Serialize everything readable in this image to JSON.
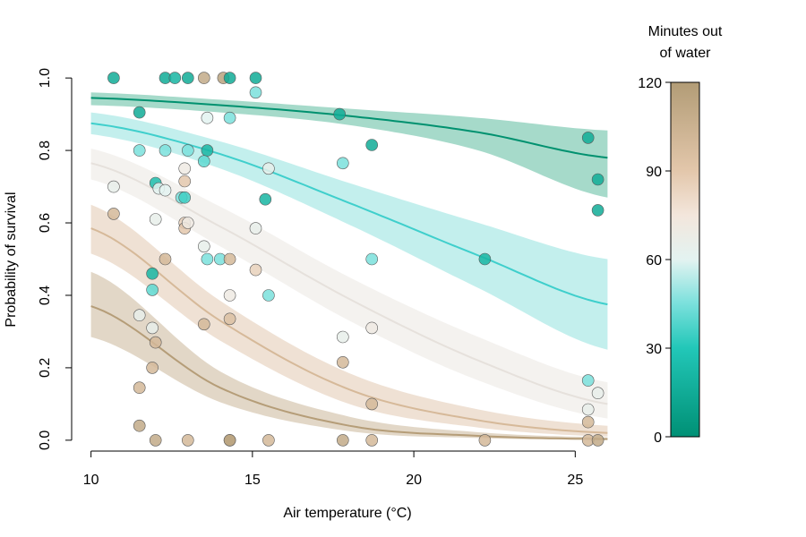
{
  "chart_data": {
    "type": "scatter",
    "xlabel": "Air temperature (°C)",
    "ylabel": "Probability of survival",
    "xlim": [
      9.4,
      26.6
    ],
    "ylim": [
      -0.03,
      1.03
    ],
    "x_ticks": [
      10,
      15,
      20,
      25
    ],
    "y_ticks": [
      0.0,
      0.2,
      0.4,
      0.6,
      0.8,
      1.0
    ],
    "x_tick_labels": [
      "10",
      "15",
      "20",
      "25"
    ],
    "y_tick_labels": [
      "0.0",
      "0.2",
      "0.4",
      "0.6",
      "0.8",
      "1.0"
    ],
    "grid": false,
    "colorbar": {
      "title_lines": [
        "Minutes out",
        "of water"
      ],
      "range": [
        0,
        120
      ],
      "ticks": [
        0,
        30,
        60,
        90,
        120
      ],
      "tick_labels": [
        "0",
        "30",
        "60",
        "90",
        "120"
      ],
      "color_stops": [
        {
          "v": 0,
          "color": "#009075"
        },
        {
          "v": 30,
          "color": "#22c7b8"
        },
        {
          "v": 45,
          "color": "#7ae0dc"
        },
        {
          "v": 60,
          "color": "#e3f3f1"
        },
        {
          "v": 75,
          "color": "#f3e6dc"
        },
        {
          "v": 90,
          "color": "#e3c7ab"
        },
        {
          "v": 120,
          "color": "#b29c76"
        }
      ]
    },
    "series": [
      {
        "minutes": 15,
        "line_color": "#00916f",
        "band_color": "#97d4c1",
        "curve": [
          [
            10,
            0.945
          ],
          [
            14,
            0.925
          ],
          [
            18,
            0.895
          ],
          [
            22,
            0.85
          ],
          [
            26,
            0.78
          ]
        ],
        "band_upper": [
          [
            10,
            0.96
          ],
          [
            14,
            0.94
          ],
          [
            18,
            0.915
          ],
          [
            22,
            0.89
          ],
          [
            26,
            0.855
          ]
        ],
        "band_lower": [
          [
            10,
            0.925
          ],
          [
            14,
            0.905
          ],
          [
            18,
            0.87
          ],
          [
            22,
            0.8
          ],
          [
            26,
            0.67
          ]
        ]
      },
      {
        "minutes": 45,
        "line_color": "#3fcfcc",
        "band_color": "#b8ecea",
        "curve": [
          [
            10,
            0.875
          ],
          [
            14,
            0.79
          ],
          [
            18,
            0.655
          ],
          [
            22,
            0.51
          ],
          [
            26,
            0.375
          ]
        ],
        "band_upper": [
          [
            10,
            0.905
          ],
          [
            14,
            0.825
          ],
          [
            18,
            0.71
          ],
          [
            22,
            0.6
          ],
          [
            26,
            0.5
          ]
        ],
        "band_lower": [
          [
            10,
            0.845
          ],
          [
            14,
            0.75
          ],
          [
            18,
            0.595
          ],
          [
            22,
            0.42
          ],
          [
            26,
            0.25
          ]
        ]
      },
      {
        "minutes": 60,
        "line_color": "#e6e1dc",
        "band_color": "#f2f0ec",
        "curve": [
          [
            10,
            0.765
          ],
          [
            14,
            0.59
          ],
          [
            18,
            0.39
          ],
          [
            22,
            0.22
          ],
          [
            26,
            0.1
          ]
        ],
        "band_upper": [
          [
            10,
            0.805
          ],
          [
            14,
            0.645
          ],
          [
            18,
            0.45
          ],
          [
            22,
            0.285
          ],
          [
            26,
            0.16
          ]
        ],
        "band_lower": [
          [
            10,
            0.72
          ],
          [
            14,
            0.535
          ],
          [
            18,
            0.33
          ],
          [
            22,
            0.165
          ],
          [
            26,
            0.06
          ]
        ]
      },
      {
        "minutes": 85,
        "line_color": "#d6b999",
        "band_color": "#ecdccd",
        "curve": [
          [
            10,
            0.585
          ],
          [
            14,
            0.33
          ],
          [
            18,
            0.14
          ],
          [
            22,
            0.055
          ],
          [
            26,
            0.02
          ]
        ],
        "band_upper": [
          [
            10,
            0.65
          ],
          [
            14,
            0.385
          ],
          [
            18,
            0.185
          ],
          [
            22,
            0.085
          ],
          [
            26,
            0.04
          ]
        ],
        "band_lower": [
          [
            10,
            0.515
          ],
          [
            14,
            0.275
          ],
          [
            18,
            0.1
          ],
          [
            22,
            0.035
          ],
          [
            26,
            0.01
          ]
        ]
      },
      {
        "minutes": 115,
        "line_color": "#b59d78",
        "band_color": "#ddd0bd",
        "curve": [
          [
            10,
            0.37
          ],
          [
            14,
            0.145
          ],
          [
            18,
            0.04
          ],
          [
            22,
            0.012
          ],
          [
            26,
            0.003
          ]
        ],
        "band_upper": [
          [
            10,
            0.465
          ],
          [
            14,
            0.19
          ],
          [
            18,
            0.065
          ],
          [
            22,
            0.022
          ],
          [
            26,
            0.008
          ]
        ],
        "band_lower": [
          [
            10,
            0.285
          ],
          [
            14,
            0.105
          ],
          [
            18,
            0.025
          ],
          [
            22,
            0.006
          ],
          [
            26,
            0.001
          ]
        ]
      }
    ],
    "points": [
      [
        10.7,
        1.0,
        15
      ],
      [
        11.5,
        0.905,
        15
      ],
      [
        12.3,
        1.0,
        15
      ],
      [
        12.6,
        1.0,
        20
      ],
      [
        13.0,
        1.0,
        15
      ],
      [
        13.5,
        1.0,
        110
      ],
      [
        14.1,
        1.0,
        115
      ],
      [
        14.3,
        1.0,
        15
      ],
      [
        15.1,
        1.0,
        15
      ],
      [
        15.1,
        0.96,
        45
      ],
      [
        14.3,
        0.89,
        45
      ],
      [
        13.6,
        0.89,
        60
      ],
      [
        11.5,
        0.8,
        45
      ],
      [
        12.3,
        0.8,
        45
      ],
      [
        13.0,
        0.8,
        45
      ],
      [
        13.6,
        0.8,
        20
      ],
      [
        13.5,
        0.77,
        40
      ],
      [
        12.9,
        0.75,
        70
      ],
      [
        12.0,
        0.71,
        25
      ],
      [
        12.9,
        0.715,
        90
      ],
      [
        12.1,
        0.695,
        60
      ],
      [
        12.3,
        0.69,
        60
      ],
      [
        12.8,
        0.67,
        45
      ],
      [
        12.9,
        0.67,
        35
      ],
      [
        10.7,
        0.7,
        65
      ],
      [
        15.5,
        0.75,
        65
      ],
      [
        15.4,
        0.665,
        20
      ],
      [
        10.7,
        0.625,
        100
      ],
      [
        12.0,
        0.61,
        65
      ],
      [
        12.9,
        0.6,
        85
      ],
      [
        12.9,
        0.585,
        90
      ],
      [
        13.0,
        0.6,
        70
      ],
      [
        15.1,
        0.585,
        65
      ],
      [
        13.5,
        0.535,
        65
      ],
      [
        13.6,
        0.5,
        45
      ],
      [
        14.0,
        0.5,
        45
      ],
      [
        14.3,
        0.5,
        100
      ],
      [
        12.3,
        0.5,
        100
      ],
      [
        11.9,
        0.46,
        20
      ],
      [
        11.9,
        0.415,
        40
      ],
      [
        15.1,
        0.47,
        85
      ],
      [
        14.3,
        0.4,
        70
      ],
      [
        15.5,
        0.4,
        45
      ],
      [
        11.5,
        0.345,
        65
      ],
      [
        13.5,
        0.32,
        100
      ],
      [
        14.3,
        0.335,
        95
      ],
      [
        11.9,
        0.31,
        65
      ],
      [
        12.0,
        0.27,
        100
      ],
      [
        11.9,
        0.2,
        100
      ],
      [
        11.5,
        0.145,
        100
      ],
      [
        11.5,
        0.04,
        110
      ],
      [
        12.0,
        0.0,
        110
      ],
      [
        13.0,
        0.0,
        100
      ],
      [
        14.3,
        0.0,
        110
      ],
      [
        14.3,
        0.0,
        115
      ],
      [
        15.5,
        0.0,
        100
      ],
      [
        17.7,
        0.9,
        15
      ],
      [
        18.7,
        0.815,
        15
      ],
      [
        17.8,
        0.765,
        45
      ],
      [
        18.7,
        0.5,
        45
      ],
      [
        17.8,
        0.285,
        65
      ],
      [
        18.7,
        0.31,
        70
      ],
      [
        17.8,
        0.215,
        100
      ],
      [
        18.7,
        0.1,
        100
      ],
      [
        17.8,
        0.0,
        110
      ],
      [
        18.7,
        0.0,
        100
      ],
      [
        22.2,
        0.5,
        20
      ],
      [
        22.2,
        0.0,
        100
      ],
      [
        25.4,
        0.835,
        15
      ],
      [
        25.7,
        0.72,
        15
      ],
      [
        25.7,
        0.635,
        15
      ],
      [
        25.4,
        0.165,
        45
      ],
      [
        25.7,
        0.13,
        65
      ],
      [
        25.4,
        0.085,
        65
      ],
      [
        25.4,
        0.05,
        100
      ],
      [
        25.4,
        0.0,
        100
      ],
      [
        25.7,
        0.0,
        110
      ]
    ]
  }
}
